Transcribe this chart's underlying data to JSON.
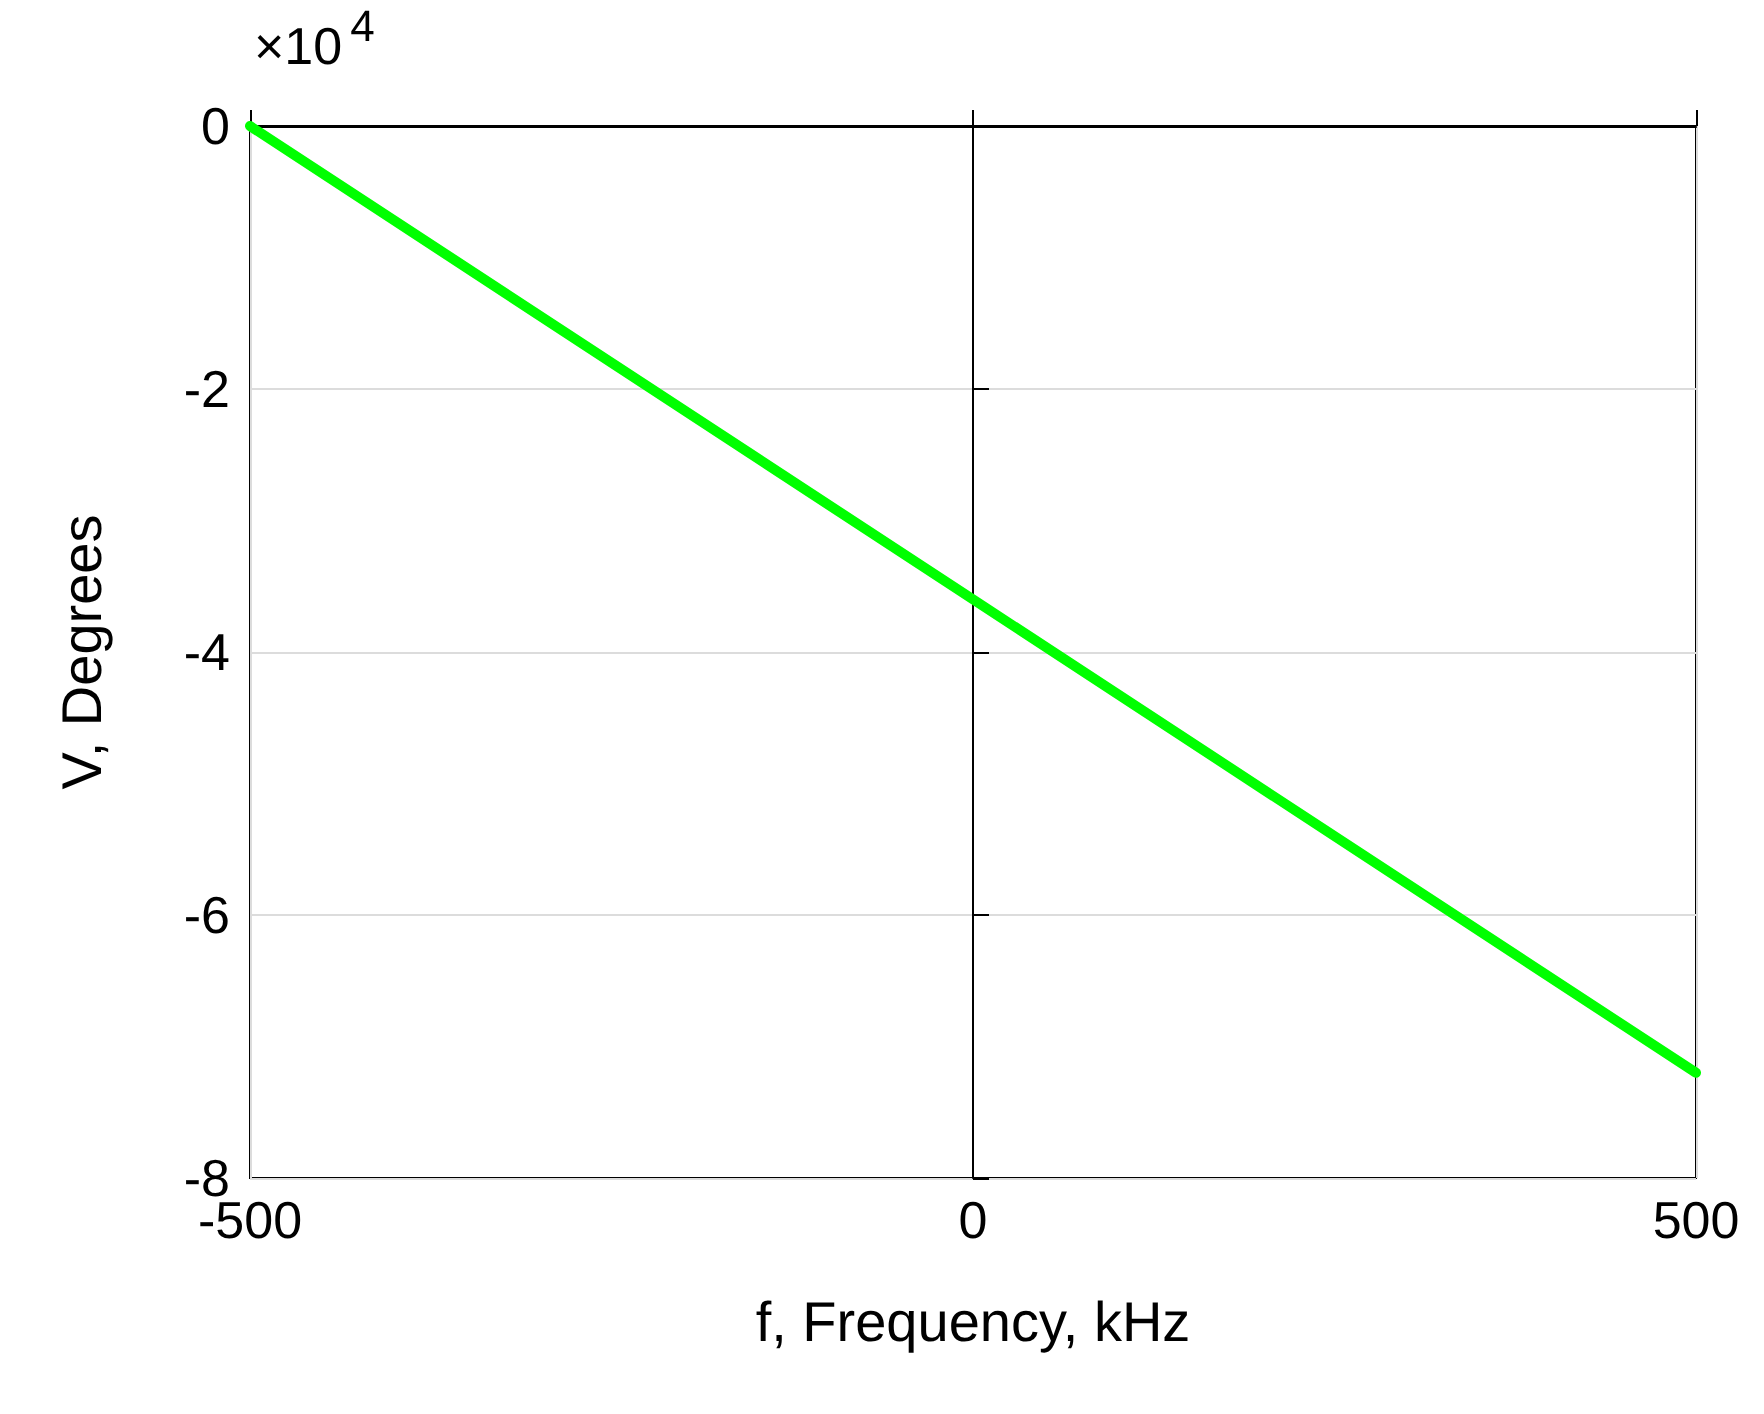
{
  "chart_data": {
    "type": "line",
    "xlabel": "f, Frequency, kHz",
    "ylabel": "V, Degrees",
    "annotations": [
      "×10$^{4}$"
    ],
    "x": [
      -500,
      0,
      500
    ],
    "series": [
      {
        "color": "#00ff00",
        "values": [
          0,
          -3.6,
          -7.2
        ]
      }
    ],
    "xlim": [
      -500,
      500
    ],
    "xticks": [
      -500,
      0,
      500
    ],
    "ylim": [
      -8,
      0
    ],
    "yticks": [
      -8,
      -6,
      -4,
      -2,
      0
    ],
    "grid": true,
    "marker": "none",
    "line_style": "solid"
  }
}
